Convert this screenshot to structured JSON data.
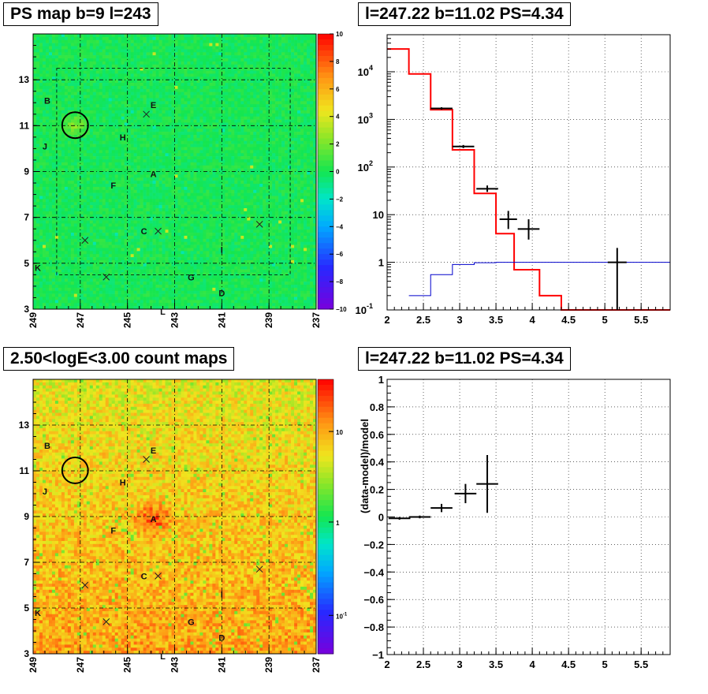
{
  "panels": {
    "top_left_title": "PS map b=9 l=243",
    "top_right_title": "l=247.22 b=11.02 PS=4.34",
    "bottom_left_title": "2.50<logE<3.00 count maps",
    "bottom_right_title": "l=247.22 b=11.02 PS=4.34"
  },
  "colors": {
    "green_map": "#2ee05a",
    "orange_map": "#f2a12a",
    "data": "#000000",
    "model": "#ff0000",
    "source_model": "#0000cc",
    "grid": "#000000"
  },
  "chart_data": [
    {
      "type": "heatmap",
      "title": "PS map b=9 l=243",
      "x_ticks": [
        "249",
        "247",
        "245",
        "243",
        "241",
        "239",
        "237"
      ],
      "y_ticks": [
        "3",
        "5",
        "7",
        "9",
        "11",
        "13"
      ],
      "xlim": [
        249,
        237
      ],
      "ylim": [
        3,
        15
      ],
      "colorbar_ticks": [
        "10",
        "8",
        "6",
        "4",
        "2",
        "0",
        "−2",
        "−4",
        "−6",
        "−8",
        "−10"
      ],
      "source_labels": [
        {
          "text": "B",
          "l": 248.4,
          "b": 12.1
        },
        {
          "text": "E",
          "l": 243.9,
          "b": 11.9
        },
        {
          "text": "H",
          "l": 245.2,
          "b": 10.5
        },
        {
          "text": "J",
          "l": 248.5,
          "b": 10.1
        },
        {
          "text": "A",
          "l": 243.9,
          "b": 8.9
        },
        {
          "text": "F",
          "l": 245.6,
          "b": 8.4
        },
        {
          "text": "C",
          "l": 244.3,
          "b": 6.4
        },
        {
          "text": "I",
          "l": 241.0,
          "b": 5.6
        },
        {
          "text": "K",
          "l": 248.8,
          "b": 4.8
        },
        {
          "text": "G",
          "l": 242.3,
          "b": 4.4
        },
        {
          "text": "D",
          "l": 241.0,
          "b": 3.7
        },
        {
          "text": "L",
          "l": 243.5,
          "b": 2.9
        }
      ],
      "crosses": [
        {
          "l": 244.2,
          "b": 11.5
        },
        {
          "l": 246.8,
          "b": 6.0
        },
        {
          "l": 243.7,
          "b": 6.4
        },
        {
          "l": 245.9,
          "b": 4.4
        },
        {
          "l": 239.4,
          "b": 6.7
        }
      ],
      "circle": {
        "l": 247.22,
        "b": 11.02,
        "r_deg": 0.55
      }
    },
    {
      "type": "line",
      "title": "l=247.22 b=11.02 PS=4.34",
      "x_ticks": [
        "2",
        "2.5",
        "3",
        "3.5",
        "4",
        "4.5",
        "5",
        "5.5"
      ],
      "xlim": [
        2,
        5.9
      ],
      "ylim": [
        0.1,
        60000
      ],
      "y_scale": "log",
      "y_ticks": [
        "10^{-1}",
        "1",
        "10",
        "10^{2}",
        "10^{3}",
        "10^{4}"
      ],
      "model_steps": [
        {
          "x0": 2.0,
          "x1": 2.3,
          "y": 30000
        },
        {
          "x0": 2.3,
          "x1": 2.6,
          "y": 9000
        },
        {
          "x0": 2.6,
          "x1": 2.9,
          "y": 1600
        },
        {
          "x0": 2.9,
          "x1": 3.2,
          "y": 230
        },
        {
          "x0": 3.2,
          "x1": 3.5,
          "y": 28
        },
        {
          "x0": 3.5,
          "x1": 3.75,
          "y": 4
        },
        {
          "x0": 3.75,
          "x1": 4.1,
          "y": 0.7
        },
        {
          "x0": 4.1,
          "x1": 4.4,
          "y": 0.2
        },
        {
          "x0": 4.4,
          "x1": 5.9,
          "y": 0.1
        }
      ],
      "source_steps": [
        {
          "x0": 2.3,
          "x1": 2.6,
          "y": 0.2
        },
        {
          "x0": 2.6,
          "x1": 2.9,
          "y": 0.55
        },
        {
          "x0": 2.9,
          "x1": 3.2,
          "y": 0.9
        },
        {
          "x0": 3.2,
          "x1": 3.5,
          "y": 0.98
        },
        {
          "x0": 3.5,
          "x1": 5.9,
          "y": 1.0
        }
      ],
      "data_points": [
        {
          "x": 2.75,
          "y": 1700,
          "xerr": 0.15,
          "ylo": 1600,
          "yhi": 1800
        },
        {
          "x": 3.05,
          "y": 270,
          "xerr": 0.15,
          "ylo": 250,
          "yhi": 290
        },
        {
          "x": 3.38,
          "y": 35,
          "xerr": 0.15,
          "ylo": 30,
          "yhi": 41
        },
        {
          "x": 3.67,
          "y": 8,
          "xerr": 0.12,
          "ylo": 5,
          "yhi": 12
        },
        {
          "x": 3.95,
          "y": 5,
          "xerr": 0.15,
          "ylo": 3,
          "yhi": 8
        },
        {
          "x": 5.17,
          "y": 1,
          "xerr": 0.13,
          "ylo": 0.1,
          "yhi": 2
        }
      ]
    },
    {
      "type": "heatmap",
      "title": "2.50<logE<3.00 count maps",
      "x_ticks": [
        "249",
        "247",
        "245",
        "243",
        "241",
        "239",
        "237"
      ],
      "y_ticks": [
        "3",
        "5",
        "7",
        "9",
        "11",
        "13"
      ],
      "xlim": [
        249,
        237
      ],
      "ylim": [
        3,
        15
      ],
      "colorbar_ticks": [
        "10",
        "1",
        "10^{-1}"
      ],
      "colorbar_scale": "log"
    },
    {
      "type": "scatter",
      "title": "l=247.22 b=11.02 PS=4.34",
      "ylabel": "(data-model)/model",
      "x_ticks": [
        "2",
        "2.5",
        "3",
        "3.5",
        "4",
        "4.5",
        "5",
        "5.5"
      ],
      "y_ticks": [
        "1",
        "0.8",
        "0.6",
        "0.4",
        "0.2",
        "0",
        "−0.2",
        "−0.4",
        "−0.6",
        "−0.8",
        "−1"
      ],
      "xlim": [
        2,
        5.9
      ],
      "ylim": [
        -1,
        1
      ],
      "points": [
        {
          "x": 2.17,
          "y": -0.01,
          "xerr": 0.15,
          "yerr": 0.01
        },
        {
          "x": 2.45,
          "y": 0.0,
          "xerr": 0.15,
          "yerr": 0.01
        },
        {
          "x": 2.75,
          "y": 0.065,
          "xerr": 0.15,
          "yerr": 0.03
        },
        {
          "x": 3.08,
          "y": 0.17,
          "xerr": 0.15,
          "yerr": 0.07
        },
        {
          "x": 3.38,
          "y": 0.24,
          "xerr": 0.15,
          "yerr": 0.21
        }
      ]
    }
  ]
}
